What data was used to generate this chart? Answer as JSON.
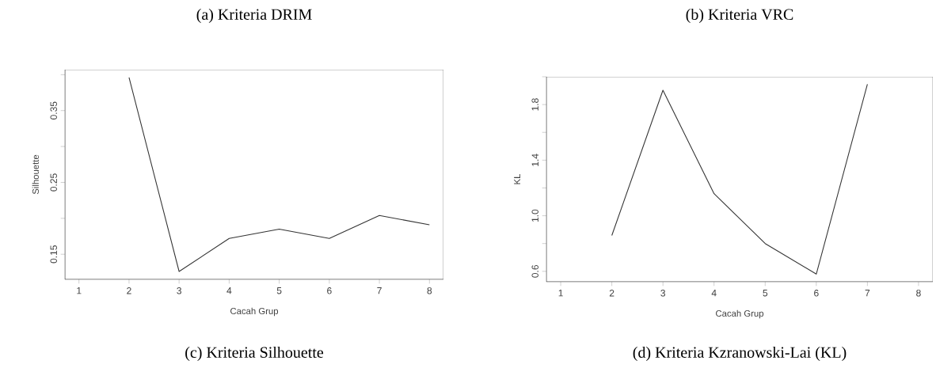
{
  "chart_data": [
    {
      "type": "line",
      "xlabel": "Cacah Grup",
      "ylabel": "Silhouette",
      "series": [
        {
          "color": "#333333",
          "x": [
            2,
            3,
            4,
            5,
            6,
            7,
            8
          ],
          "values": [
            0.396,
            0.126,
            0.172,
            0.185,
            0.172,
            0.204,
            0.191
          ]
        }
      ],
      "xlim": [
        0.72,
        8.28
      ],
      "xticks": [
        1,
        2,
        3,
        4,
        5,
        6,
        7,
        8
      ],
      "ylim": [
        0.115,
        0.407
      ],
      "yticks": [
        0.15,
        {
          "value": 0.2,
          "label": null
        },
        0.25,
        {
          "value": 0.3,
          "label": null
        },
        0.35,
        {
          "value": 0.4,
          "label": null
        }
      ],
      "grid": false,
      "marker": "none",
      "line_style": "solid",
      "annotations": [
        "(a) Kriteria DRIM",
        "(c) Kriteria Silhouette"
      ]
    },
    {
      "type": "line",
      "xlabel": "Cacah Grup",
      "ylabel": "KL",
      "series": [
        {
          "color": "#333333",
          "x": [
            2,
            3,
            4,
            5,
            6,
            7
          ],
          "values": [
            0.858,
            1.903,
            1.159,
            0.8,
            0.58,
            1.946
          ]
        }
      ],
      "xlim": [
        0.72,
        8.28
      ],
      "xticks": [
        1,
        2,
        3,
        4,
        5,
        6,
        7,
        8
      ],
      "ylim": [
        0.525,
        2.0
      ],
      "yticks": [
        0.6,
        {
          "value": 0.8,
          "label": null
        },
        "1.0",
        {
          "value": 1.2,
          "label": null
        },
        1.4,
        {
          "value": 1.6,
          "label": null
        },
        1.8,
        {
          "value": 2.0,
          "label": null
        }
      ],
      "grid": false,
      "marker": "none",
      "line_style": "solid",
      "annotations": [
        "(b) Kriteria VRC",
        "(d) Kriteria Kzranowski-Lai (KL)"
      ]
    }
  ]
}
